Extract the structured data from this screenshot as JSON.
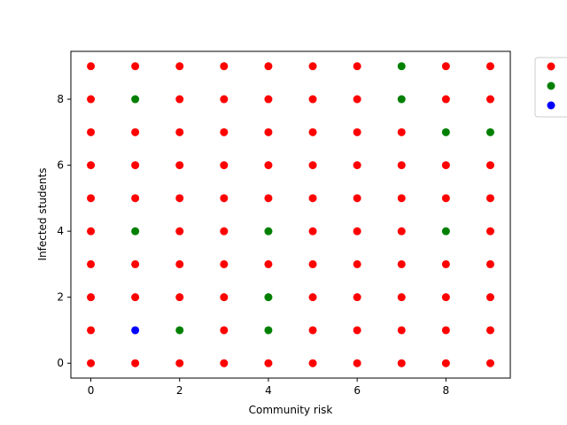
{
  "chart_data": {
    "type": "scatter",
    "title": "",
    "xlabel": "Community risk",
    "ylabel": "Infected students",
    "xlim": [
      -0.45,
      9.45
    ],
    "ylim": [
      -0.45,
      9.45
    ],
    "x_ticks": [
      0,
      2,
      4,
      6,
      8
    ],
    "y_ticks": [
      0,
      2,
      4,
      6,
      8
    ],
    "grid": false,
    "legend": {
      "placement": "outside-top-right",
      "entries": [
        {
          "color": "#ff0000",
          "label": ""
        },
        {
          "color": "#008000",
          "label": ""
        },
        {
          "color": "#0000ff",
          "label": ""
        }
      ]
    },
    "colors": {
      "red": "#ff0000",
      "green": "#008000",
      "blue": "#0000ff"
    },
    "grid_points": {
      "x_values": [
        0,
        1,
        2,
        3,
        4,
        5,
        6,
        7,
        8,
        9
      ],
      "y_values": [
        0,
        1,
        2,
        3,
        4,
        5,
        6,
        7,
        8,
        9
      ],
      "default_color": "red"
    },
    "points": [
      {
        "x": 1,
        "y": 1,
        "color": "blue"
      },
      {
        "x": 2,
        "y": 1,
        "color": "green"
      },
      {
        "x": 4,
        "y": 1,
        "color": "green"
      },
      {
        "x": 4,
        "y": 2,
        "color": "green"
      },
      {
        "x": 1,
        "y": 4,
        "color": "green"
      },
      {
        "x": 4,
        "y": 4,
        "color": "green"
      },
      {
        "x": 8,
        "y": 4,
        "color": "green"
      },
      {
        "x": 8,
        "y": 7,
        "color": "green"
      },
      {
        "x": 9,
        "y": 7,
        "color": "green"
      },
      {
        "x": 1,
        "y": 8,
        "color": "green"
      },
      {
        "x": 7,
        "y": 8,
        "color": "green"
      },
      {
        "x": 7,
        "y": 9,
        "color": "green"
      }
    ]
  }
}
